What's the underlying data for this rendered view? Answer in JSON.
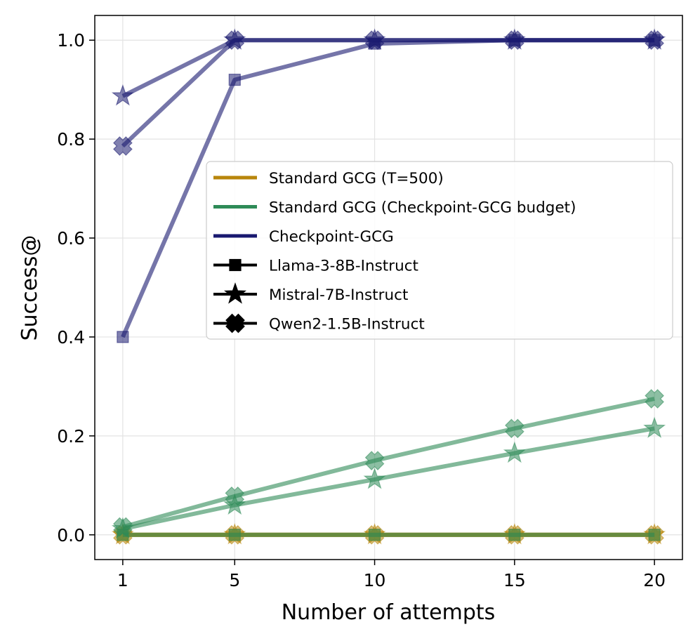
{
  "chart_data": {
    "type": "line",
    "xlabel": "Number of attempts",
    "ylabel": "Success@",
    "x": [
      1,
      5,
      10,
      15,
      20
    ],
    "xlim": [
      0,
      21
    ],
    "ylim": [
      -0.05,
      1.05
    ],
    "xticks": [
      1,
      5,
      10,
      15,
      20
    ],
    "yticks": [
      0.0,
      0.2,
      0.4,
      0.6,
      0.8,
      1.0
    ],
    "grid": true,
    "legend_position": "center-right",
    "colors": {
      "standard_500": "#b8860b",
      "standard_budget": "#2e8b57",
      "checkpoint": "#191970"
    },
    "legend": [
      {
        "label": "Standard GCG (T=500)",
        "kind": "line",
        "color": "#b8860b"
      },
      {
        "label": "Standard GCG (Checkpoint-GCG budget)",
        "kind": "line",
        "color": "#2e8b57"
      },
      {
        "label": "Checkpoint-GCG",
        "kind": "line",
        "color": "#191970"
      },
      {
        "label": "Llama-3-8B-Instruct",
        "kind": "marker",
        "marker": "square"
      },
      {
        "label": "Mistral-7B-Instruct",
        "kind": "marker",
        "marker": "star"
      },
      {
        "label": "Qwen2-1.5B-Instruct",
        "kind": "marker",
        "marker": "x"
      }
    ],
    "series": [
      {
        "name": "Standard GCG (T=500) - Llama-3-8B-Instruct",
        "group": "standard_500",
        "marker": "square",
        "values": [
          0,
          0,
          0,
          0,
          0
        ]
      },
      {
        "name": "Standard GCG (T=500) - Mistral-7B-Instruct",
        "group": "standard_500",
        "marker": "star",
        "values": [
          0,
          0,
          0,
          0,
          0
        ]
      },
      {
        "name": "Standard GCG (T=500) - Qwen2-1.5B-Instruct",
        "group": "standard_500",
        "marker": "x",
        "values": [
          0,
          0,
          0,
          0,
          0
        ]
      },
      {
        "name": "Standard GCG (Checkpoint-GCG budget) - Llama-3-8B-Instruct",
        "group": "standard_budget",
        "marker": "square",
        "values": [
          0,
          0,
          0,
          0,
          0
        ]
      },
      {
        "name": "Standard GCG (Checkpoint-GCG budget) - Mistral-7B-Instruct",
        "group": "standard_budget",
        "marker": "star",
        "values": [
          0.012,
          0.06,
          0.112,
          0.165,
          0.215
        ]
      },
      {
        "name": "Standard GCG (Checkpoint-GCG budget) - Qwen2-1.5B-Instruct",
        "group": "standard_budget",
        "marker": "x",
        "values": [
          0.016,
          0.078,
          0.15,
          0.215,
          0.275
        ]
      },
      {
        "name": "Checkpoint-GCG - Llama-3-8B-Instruct",
        "group": "checkpoint",
        "marker": "square",
        "values": [
          0.4,
          0.92,
          0.993,
          1.0,
          1.0
        ]
      },
      {
        "name": "Checkpoint-GCG - Mistral-7B-Instruct",
        "group": "checkpoint",
        "marker": "star",
        "values": [
          0.887,
          1.0,
          1.0,
          1.0,
          1.0
        ]
      },
      {
        "name": "Checkpoint-GCG - Qwen2-1.5B-Instruct",
        "group": "checkpoint",
        "marker": "x",
        "values": [
          0.786,
          1.0,
          1.0,
          1.0,
          1.0
        ]
      }
    ]
  }
}
